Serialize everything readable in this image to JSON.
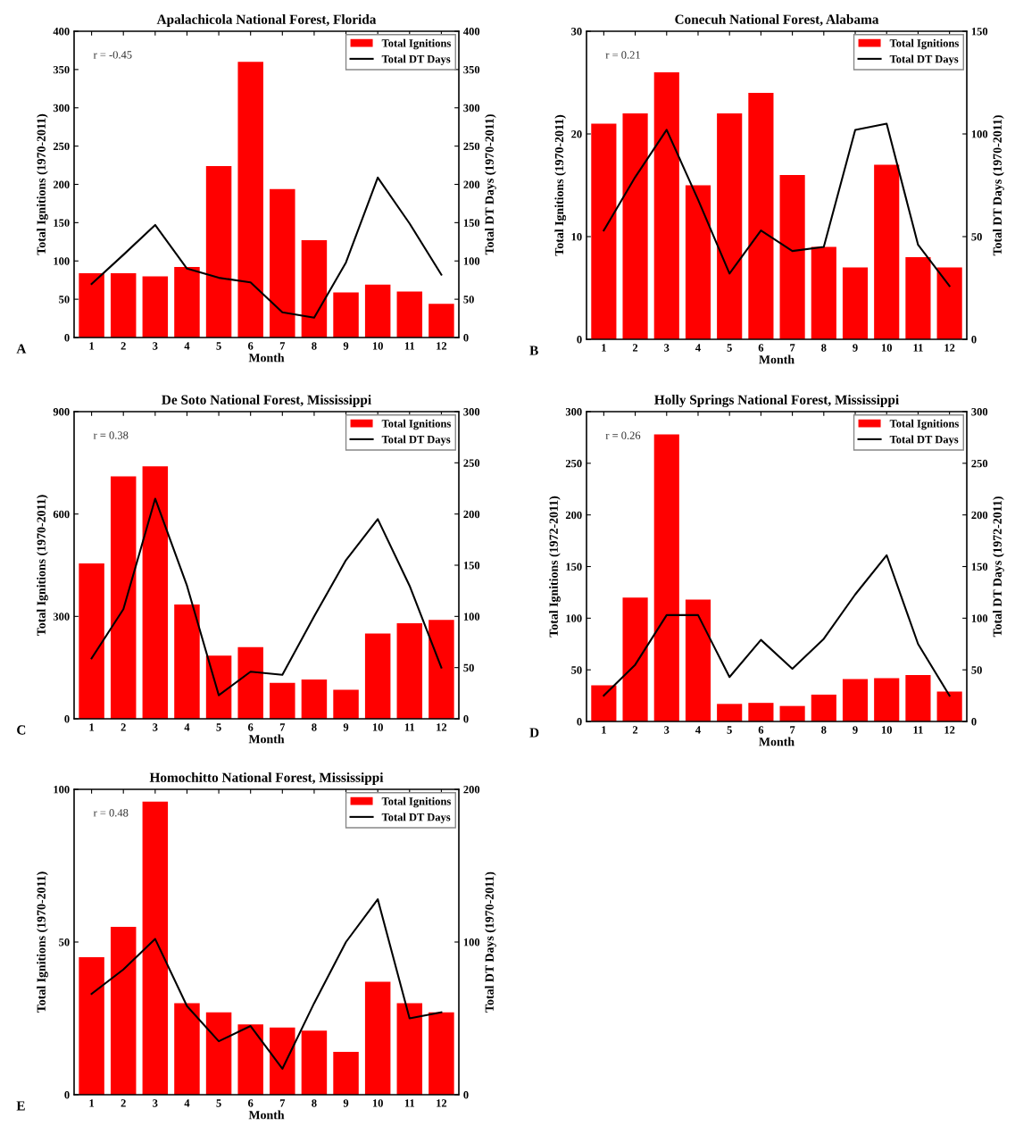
{
  "chart_data": [
    {
      "type": "bar",
      "title": "Apalachicola National Forest, Florida",
      "xlabel": "Month",
      "ylabel": "Total Ignitions (1970-2011)",
      "y2label": "Total DT Days (1970-2011)",
      "categories": [
        "1",
        "2",
        "3",
        "4",
        "5",
        "6",
        "7",
        "8",
        "9",
        "10",
        "11",
        "12"
      ],
      "series": [
        {
          "name": "Total Ignitions",
          "color": "#ff0000",
          "values": [
            84,
            84,
            80,
            92,
            224,
            360,
            194,
            127,
            59,
            69,
            60,
            44
          ]
        },
        {
          "name": "Total DT Days",
          "type": "line",
          "axis": "y2",
          "color": "#000000",
          "values": [
            70,
            108,
            147,
            90,
            78,
            72,
            33,
            26,
            98,
            209,
            149,
            82
          ]
        }
      ],
      "ylim": [
        0,
        400
      ],
      "yticks": [
        0,
        50,
        100,
        150,
        200,
        250,
        300,
        350,
        400
      ],
      "y2lim": [
        0,
        400
      ],
      "y2ticks": [
        0,
        50,
        100,
        150,
        200,
        250,
        300,
        350,
        400
      ],
      "annotations": [
        "A",
        "r = -0.45"
      ],
      "legend": "top right",
      "grid": false
    },
    {
      "type": "bar",
      "title": "Conecuh National Forest, Alabama",
      "xlabel": "Month",
      "ylabel": "Total Ignitions (1970-2011)",
      "y2label": "Total DT Days (1970-2011)",
      "categories": [
        "1",
        "2",
        "3",
        "4",
        "5",
        "6",
        "7",
        "8",
        "9",
        "10",
        "11",
        "12"
      ],
      "series": [
        {
          "name": "Total Ignitions",
          "color": "#ff0000",
          "values": [
            21,
            22,
            26,
            15,
            22,
            24,
            16,
            9,
            7,
            17,
            8,
            7
          ]
        },
        {
          "name": "Total DT Days",
          "type": "line",
          "axis": "y2",
          "color": "#000000",
          "values": [
            53,
            79,
            102,
            68,
            32,
            53,
            43,
            45,
            102,
            105,
            46,
            26
          ]
        }
      ],
      "ylim": [
        0,
        30
      ],
      "yticks": [
        0,
        10,
        20,
        30
      ],
      "y2lim": [
        0,
        150
      ],
      "y2ticks": [
        0,
        50,
        100,
        150
      ],
      "annotations": [
        "B",
        "r = 0.21"
      ],
      "legend": "top right",
      "grid": false
    },
    {
      "type": "bar",
      "title": "De Soto National Forest, Mississippi",
      "xlabel": "Month",
      "ylabel": "Total Ignitions (1970-2011)",
      "categories": [
        "1",
        "2",
        "3",
        "4",
        "5",
        "6",
        "7",
        "8",
        "9",
        "10",
        "11",
        "12"
      ],
      "series": [
        {
          "name": "Total Ignitions",
          "color": "#ff0000",
          "values": [
            455,
            710,
            740,
            335,
            185,
            210,
            105,
            115,
            85,
            250,
            280,
            290
          ]
        },
        {
          "name": "Total DT Days",
          "type": "line",
          "axis": "y2",
          "color": "#000000",
          "values": [
            59,
            107,
            215,
            130,
            23,
            46,
            43,
            100,
            155,
            195,
            130,
            50
          ]
        }
      ],
      "ylim": [
        0,
        900
      ],
      "yticks": [
        0,
        300,
        600,
        900
      ],
      "y2lim": [
        0,
        300
      ],
      "y2ticks": [
        0,
        50,
        100,
        150,
        200,
        250,
        300
      ],
      "annotations": [
        "C",
        "r = 0.38"
      ],
      "legend": "top right",
      "grid": false
    },
    {
      "type": "bar",
      "title": "Holly Springs National Forest, Mississippi",
      "xlabel": "Month",
      "ylabel": "Total Ignitions (1972-2011)",
      "y2label": "Total DT Days (1972-2011)",
      "categories": [
        "1",
        "2",
        "3",
        "4",
        "5",
        "6",
        "7",
        "8",
        "9",
        "10",
        "11",
        "12"
      ],
      "series": [
        {
          "name": "Total Ignitions",
          "color": "#ff0000",
          "values": [
            35,
            120,
            278,
            118,
            17,
            18,
            15,
            26,
            41,
            42,
            45,
            29
          ]
        },
        {
          "name": "Total DT Days",
          "type": "line",
          "axis": "y2",
          "color": "#000000",
          "values": [
            25,
            55,
            103,
            103,
            43,
            79,
            51,
            80,
            123,
            161,
            75,
            25
          ]
        }
      ],
      "ylim": [
        0,
        300
      ],
      "yticks": [
        0,
        50,
        100,
        150,
        200,
        250,
        300
      ],
      "y2lim": [
        0,
        300
      ],
      "y2ticks": [
        0,
        50,
        100,
        150,
        200,
        250,
        300
      ],
      "annotations": [
        "D",
        "r = 0.26"
      ],
      "legend": "top right",
      "grid": false
    },
    {
      "type": "bar",
      "title": "Homochitto National Forest, Mississippi",
      "xlabel": "Month",
      "ylabel": "Total Ignitions (1970-2011)",
      "y2label": "Total DT Days (1970-2011)",
      "categories": [
        "1",
        "2",
        "3",
        "4",
        "5",
        "6",
        "7",
        "8",
        "9",
        "10",
        "11",
        "12"
      ],
      "series": [
        {
          "name": "Total Ignitions",
          "color": "#ff0000",
          "values": [
            45,
            55,
            96,
            30,
            27,
            23,
            22,
            21,
            14,
            37,
            30,
            27
          ]
        },
        {
          "name": "Total DT Days",
          "type": "line",
          "axis": "y2",
          "color": "#000000",
          "values": [
            66,
            82,
            102,
            58,
            35,
            45,
            17,
            60,
            100,
            128,
            50,
            54
          ]
        }
      ],
      "ylim": [
        0,
        100
      ],
      "yticks": [
        0,
        50,
        100
      ],
      "y2lim": [
        0,
        200
      ],
      "y2ticks": [
        0,
        100,
        200
      ],
      "annotations": [
        "E",
        "r = 0.48"
      ],
      "legend": "top right",
      "grid": false
    }
  ]
}
